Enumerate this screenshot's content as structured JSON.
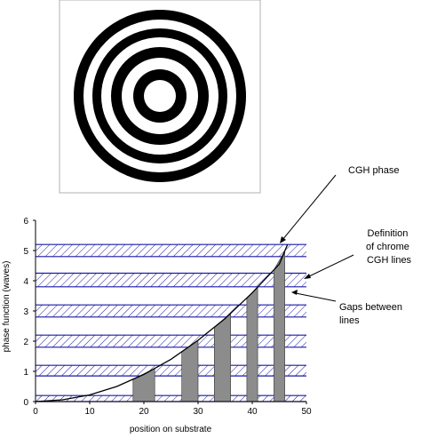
{
  "chart_data": {
    "type": "line",
    "title": "",
    "xlabel": "position on substrate",
    "ylabel": "phase function (waves)",
    "xlim": [
      0,
      50
    ],
    "ylim": [
      0,
      6
    ],
    "xticks": [
      "0",
      "10",
      "20",
      "30",
      "40",
      "50"
    ],
    "yticks": [
      "0",
      "1",
      "2",
      "3",
      "4",
      "5",
      "6"
    ],
    "series": [
      {
        "name": "",
        "x": [
          0,
          5,
          10,
          15,
          20,
          25,
          30,
          35,
          40,
          45,
          46.5
        ],
        "y": [
          0,
          0.06,
          0.22,
          0.5,
          0.9,
          1.4,
          2.03,
          2.75,
          3.6,
          4.55,
          5.2
        ]
      }
    ],
    "grid": false,
    "legend": "none",
    "hatched_bands_y": [
      [
        0,
        0.2
      ],
      [
        0.85,
        1.2
      ],
      [
        1.8,
        2.2
      ],
      [
        2.8,
        3.2
      ],
      [
        3.8,
        4.25
      ],
      [
        4.8,
        5.2
      ]
    ],
    "chrome_bars": [
      {
        "x0": 18,
        "x1": 22
      },
      {
        "x0": 27,
        "x1": 30
      },
      {
        "x0": 33,
        "x1": 36
      },
      {
        "x0": 39,
        "x1": 41
      },
      {
        "x0": 44,
        "x1": 46
      }
    ]
  },
  "pattern": {
    "ring_color": "#000000",
    "background": "#ffffff",
    "ring_count": 6
  },
  "annotations": {
    "cgh_phase": [
      "CGH phase"
    ],
    "definition": [
      "Definition",
      "of chrome",
      "CGH lines"
    ],
    "gaps": [
      "Gaps between",
      "lines"
    ]
  },
  "colors": {
    "band_stroke": "#1a1aa8",
    "bar_fill": "#8c8c8c",
    "curve": "#000000"
  }
}
